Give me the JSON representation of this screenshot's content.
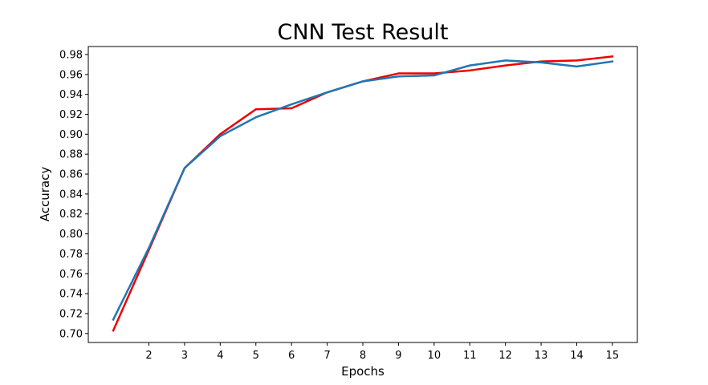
{
  "chart_data": {
    "type": "line",
    "title": "CNN Test Result",
    "xlabel": "Epochs",
    "ylabel": "Accuracy",
    "xlim": [
      0.3,
      15.7
    ],
    "ylim": [
      0.691,
      0.988
    ],
    "xticks": [
      2,
      3,
      4,
      5,
      6,
      7,
      8,
      9,
      10,
      11,
      12,
      13,
      14,
      15
    ],
    "yticks": [
      0.7,
      0.72,
      0.74,
      0.76,
      0.78,
      0.8,
      0.82,
      0.84,
      0.86,
      0.88,
      0.9,
      0.92,
      0.94,
      0.96,
      0.98
    ],
    "ytick_labels": [
      "0.70",
      "0.72",
      "0.74",
      "0.76",
      "0.78",
      "0.80",
      "0.82",
      "0.84",
      "0.86",
      "0.88",
      "0.90",
      "0.92",
      "0.94",
      "0.96",
      "0.98"
    ],
    "grid": false,
    "x": [
      1,
      2,
      3,
      4,
      5,
      6,
      7,
      8,
      9,
      10,
      11,
      12,
      13,
      14,
      15
    ],
    "series": [
      {
        "color": "#ee0000",
        "values": [
          0.703,
          0.784,
          0.866,
          0.9,
          0.925,
          0.926,
          0.942,
          0.953,
          0.961,
          0.961,
          0.964,
          0.969,
          0.973,
          0.974,
          0.978
        ]
      },
      {
        "color": "#1f77b4",
        "values": [
          0.714,
          0.786,
          0.866,
          0.898,
          0.917,
          0.93,
          0.942,
          0.953,
          0.958,
          0.959,
          0.969,
          0.974,
          0.972,
          0.968,
          0.973
        ]
      }
    ]
  }
}
